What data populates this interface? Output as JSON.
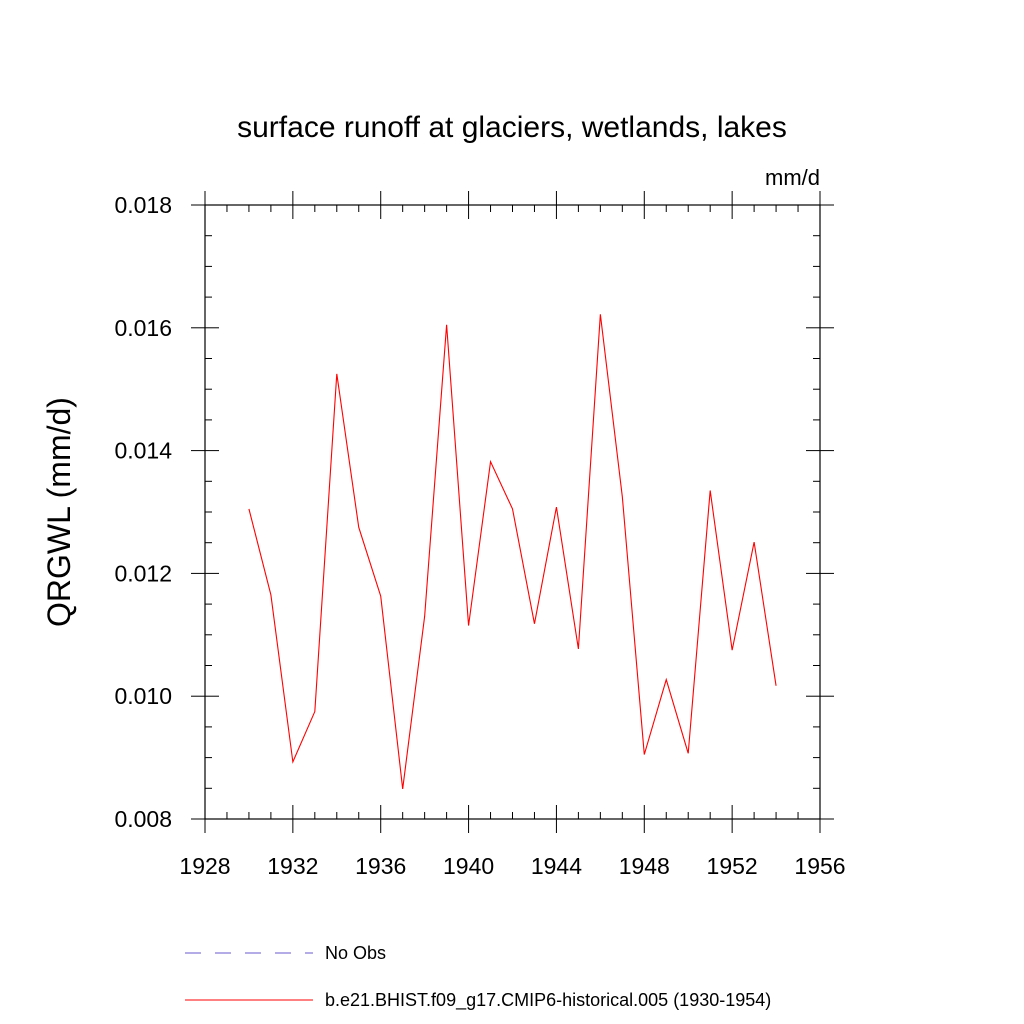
{
  "chart_data": {
    "type": "line",
    "title": "surface runoff at glaciers, wetlands, lakes",
    "units_label": "mm/d",
    "ylabel": "QRGWL  (mm/d)",
    "xlabel": "",
    "xlim": [
      1928,
      1956
    ],
    "ylim": [
      0.008,
      0.018
    ],
    "xticks": [
      "1928",
      "1932",
      "1936",
      "1940",
      "1944",
      "1948",
      "1952",
      "1956"
    ],
    "yticks": [
      "0.008",
      "0.010",
      "0.012",
      "0.014",
      "0.016",
      "0.018"
    ],
    "series": [
      {
        "name": "b.e21.BHIST.f09_g17.CMIP6-historical.005 (1930-1954)",
        "color": "#ff0000",
        "style": "solid",
        "x": [
          1930,
          1931,
          1932,
          1933,
          1934,
          1935,
          1936,
          1937,
          1938,
          1939,
          1940,
          1941,
          1942,
          1943,
          1944,
          1945,
          1946,
          1947,
          1948,
          1949,
          1950,
          1951,
          1952,
          1953,
          1954
        ],
        "values": [
          0.01305,
          0.01165,
          0.00893,
          0.00975,
          0.01525,
          0.01275,
          0.01163,
          0.00849,
          0.0113,
          0.01605,
          0.01115,
          0.01382,
          0.01305,
          0.01118,
          0.01308,
          0.01077,
          0.01622,
          0.01325,
          0.00905,
          0.01027,
          0.00907,
          0.01335,
          0.01075,
          0.01251,
          0.01017
        ]
      }
    ],
    "legend": [
      {
        "label": "No Obs",
        "color": "#6a5acd",
        "style": "dashed"
      },
      {
        "label": "b.e21.BHIST.f09_g17.CMIP6-historical.005 (1930-1954)",
        "color": "#ff0000",
        "style": "solid"
      }
    ],
    "legend_position": "bottom"
  }
}
